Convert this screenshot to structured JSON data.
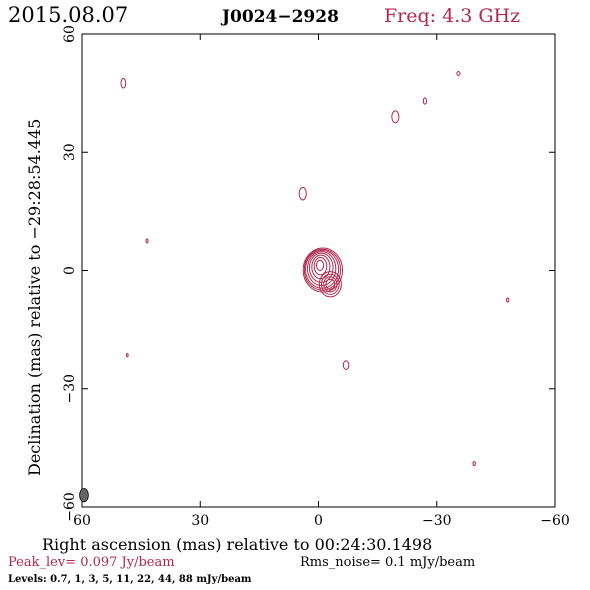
{
  "header": {
    "date": "2015.08.07",
    "source": "J0024−2928",
    "freq": "Freq: 4.3 GHz"
  },
  "footer": {
    "peak": "Peak_lev=  0.097 Jy/beam",
    "rms": "Rms_noise=   0.1 mJy/beam",
    "levels": "Levels: 0.7,    1,    3,    5,   11,   22,   44,   88 mJy/beam"
  },
  "colors": {
    "accent": "#b0274f",
    "ink": "#000000",
    "beam": "#666666"
  },
  "chart_data": {
    "type": "contour",
    "xlabel": "Right ascension (mas) relative to 00:24:30.1498",
    "ylabel": "Declination (mas) relative to −29:28:54.445",
    "xlim": [
      60,
      -60
    ],
    "ylim": [
      -60,
      60
    ],
    "xticks": [
      60,
      30,
      0,
      -30,
      -60
    ],
    "yticks": [
      60,
      30,
      0,
      -30,
      -60
    ],
    "xtick_labels": [
      "60",
      "30",
      "0",
      "−30",
      "−60"
    ],
    "ytick_labels": [
      "60",
      "30",
      "0",
      "−30",
      "−60"
    ],
    "core": {
      "x": -0.5,
      "y": 0.5,
      "contours": [
        {
          "rx": 5.0,
          "ry": 5.6,
          "dx": -0.6,
          "dy": -0.4
        },
        {
          "rx": 4.6,
          "ry": 5.2,
          "dx": -0.5,
          "dy": -0.3
        },
        {
          "rx": 4.2,
          "ry": 4.8,
          "dx": -0.4,
          "dy": -0.2
        },
        {
          "rx": 3.6,
          "ry": 4.3,
          "dx": -0.3,
          "dy": 0.0
        },
        {
          "rx": 3.0,
          "ry": 3.7,
          "dx": -0.2,
          "dy": 0.2
        },
        {
          "rx": 2.3,
          "ry": 3.0,
          "dx": -0.1,
          "dy": 0.4
        },
        {
          "rx": 1.6,
          "ry": 2.2,
          "dx": 0.0,
          "dy": 0.6
        },
        {
          "rx": 0.9,
          "ry": 1.3,
          "dx": 0.1,
          "dy": 0.8
        }
      ],
      "extension": {
        "x": -3.0,
        "y": -3.5,
        "rx": 2.8,
        "ry": 3.2
      }
    },
    "islands": [
      {
        "x": 49.5,
        "y": 47.5,
        "rx": 0.6,
        "ry": 1.2
      },
      {
        "x": 4.0,
        "y": 19.5,
        "rx": 0.9,
        "ry": 1.6
      },
      {
        "x": -19.5,
        "y": 39.0,
        "rx": 0.9,
        "ry": 1.5
      },
      {
        "x": -27.0,
        "y": 43.0,
        "rx": 0.4,
        "ry": 0.8
      },
      {
        "x": -35.5,
        "y": 50.0,
        "rx": 0.4,
        "ry": 0.5
      },
      {
        "x": 43.5,
        "y": 7.5,
        "rx": 0.25,
        "ry": 0.5
      },
      {
        "x": -48.0,
        "y": -7.5,
        "rx": 0.3,
        "ry": 0.5
      },
      {
        "x": 48.5,
        "y": -21.5,
        "rx": 0.2,
        "ry": 0.4
      },
      {
        "x": -7.0,
        "y": -24.0,
        "rx": 0.7,
        "ry": 1.1
      },
      {
        "x": -39.5,
        "y": -49.0,
        "rx": 0.3,
        "ry": 0.5
      }
    ],
    "beam": {
      "x": 59.5,
      "y": -57.0,
      "rx": 0.8,
      "ry": 1.7
    }
  }
}
